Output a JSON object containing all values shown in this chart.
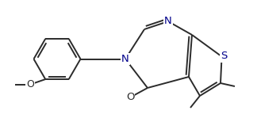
{
  "bg_color": "#ffffff",
  "bond_color": "#2b2b2b",
  "atom_colors": {
    "N": "#00008b",
    "S": "#00008b",
    "O": "#2b2b2b"
  },
  "line_width": 1.4,
  "font_size": 9.5,
  "fig_width": 3.24,
  "fig_height": 1.49,
  "dpi": 100,
  "xlim": [
    0,
    3.24
  ],
  "ylim": [
    0,
    1.49
  ]
}
